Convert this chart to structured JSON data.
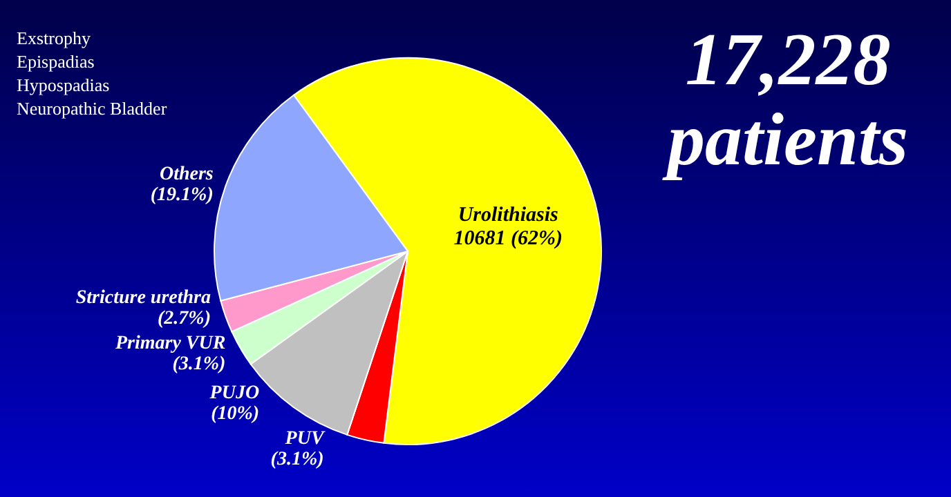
{
  "chart_data": {
    "type": "pie",
    "title": "17,228\npatients",
    "categories": [
      "Urolithiasis",
      "PUV",
      "PUJO",
      "Primary VUR",
      "Stricture urethra",
      "Others"
    ],
    "values": [
      62,
      3.1,
      10,
      3.1,
      2.7,
      19.1
    ],
    "value_labels": [
      "10681 (62%)",
      "(3.1%)",
      "(10%)",
      "(3.1%)",
      "(2.7%)",
      "(19.1%)"
    ],
    "colors": [
      "#ffff00",
      "#ff0000",
      "#c0c0c0",
      "#ccffcc",
      "#ff99cc",
      "#8fa6ff"
    ],
    "annotations": [
      "Exstrophy\nEpispadias\nHypospadias\nNeuropathic Bladder"
    ]
  }
}
